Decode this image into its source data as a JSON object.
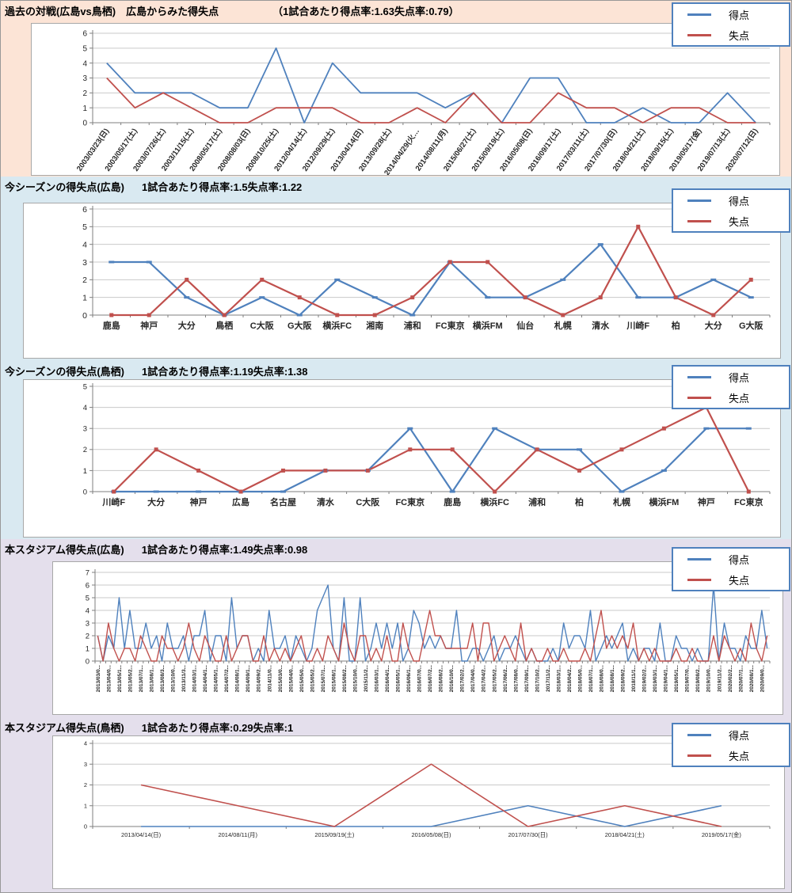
{
  "legend": {
    "score_label": "得点",
    "concede_label": "失点"
  },
  "colors": {
    "score": "#4F81BD",
    "concede": "#C0504D",
    "section1_bg": "#FCE4D6",
    "section2_bg": "#D9E9F1",
    "section3_bg": "#D9E9F1",
    "section4_bg": "#E4DFEC",
    "section5_bg": "#E4DFEC",
    "legend_border": "#4F81BD"
  },
  "sections": [
    {
      "title": "過去の対戦(広島vs鳥栖)　広島からみた得失点",
      "stats": "（1試合あたり得点率:1.63失点率:0.79）"
    },
    {
      "title": "今シーズンの得失点(広島)",
      "stats": "1試合あたり得点率:1.5失点率:1.22"
    },
    {
      "title": "今シーズンの得失点(鳥栖)",
      "stats": "1試合あたり得点率:1.19失点率:1.38"
    },
    {
      "title": "本スタジアム得失点(広島)",
      "stats": "1試合あたり得点率:1.49失点率:0.98"
    },
    {
      "title": "本スタジアム得失点(鳥栖)",
      "stats": "1試合あたり得点率:0.29失点率:1"
    }
  ],
  "chart_data": [
    {
      "type": "line",
      "title": "過去の対戦(広島vs鳥栖) 広島からみた得失点",
      "x_labels": [
        "2003/03/23(日)",
        "2003/05/17(土)",
        "2003/07/26(土)",
        "2003/11/15(土)",
        "2008/05/17(土)",
        "2008/08/03(日)",
        "2008/10/25(土)",
        "2012/04/14(土)",
        "2012/09/29(土)",
        "2013/04/14(日)",
        "2013/09/28(土)",
        "2014/04/29(火…",
        "2014/08/11(月)",
        "2015/06/27(土)",
        "2015/09/19(土)",
        "2016/05/08(日)",
        "2016/09/17(土)",
        "2017/03/11(土)",
        "2017/07/30(日)",
        "2018/04/21(土)",
        "2018/09/15(土)",
        "2019/05/17(金)",
        "2019/07/13(土)",
        "2020/07/12(日)"
      ],
      "series": [
        {
          "name": "得点",
          "color": "#4F81BD",
          "values": [
            4,
            2,
            2,
            2,
            1,
            1,
            5,
            0,
            4,
            2,
            2,
            2,
            1,
            2,
            0,
            3,
            3,
            0,
            0,
            1,
            0,
            0,
            2,
            0
          ]
        },
        {
          "name": "失点",
          "color": "#C0504D",
          "values": [
            3,
            1,
            2,
            1,
            0,
            0,
            1,
            1,
            1,
            0,
            0,
            1,
            0,
            2,
            0,
            0,
            2,
            1,
            1,
            0,
            1,
            1,
            0,
            0
          ]
        }
      ],
      "ylim": [
        0,
        6
      ],
      "grid": true,
      "legend_position": "top-right",
      "x_label_rotation": -55
    },
    {
      "type": "line",
      "title": "今シーズンの得失点(広島)",
      "x_labels": [
        "鹿島",
        "神戸",
        "大分",
        "鳥栖",
        "C大阪",
        "G大阪",
        "横浜FC",
        "湘南",
        "浦和",
        "FC東京",
        "横浜FM",
        "仙台",
        "札幌",
        "清水",
        "川崎F",
        "柏",
        "大分",
        "G大阪"
      ],
      "series": [
        {
          "name": "得点",
          "color": "#4F81BD",
          "values": [
            3,
            3,
            1,
            0,
            1,
            0,
            2,
            1,
            0,
            3,
            1,
            1,
            2,
            4,
            1,
            1,
            2,
            1
          ]
        },
        {
          "name": "失点",
          "color": "#C0504D",
          "values": [
            0,
            0,
            2,
            0,
            2,
            1,
            0,
            0,
            1,
            3,
            3,
            1,
            0,
            1,
            5,
            1,
            0,
            2
          ]
        }
      ],
      "ylim": [
        0,
        6
      ],
      "grid": true,
      "legend_position": "top-right",
      "x_label_rotation": 0
    },
    {
      "type": "line",
      "title": "今シーズンの得失点(鳥栖)",
      "x_labels": [
        "川崎F",
        "大分",
        "神戸",
        "広島",
        "名古屋",
        "清水",
        "C大阪",
        "FC東京",
        "鹿島",
        "横浜FC",
        "浦和",
        "柏",
        "札幌",
        "横浜FM",
        "神戸",
        "FC東京"
      ],
      "series": [
        {
          "name": "得点",
          "color": "#4F81BD",
          "values": [
            0,
            0,
            0,
            0,
            0,
            1,
            1,
            3,
            0,
            3,
            2,
            2,
            0,
            1,
            3,
            3
          ]
        },
        {
          "name": "失点",
          "color": "#C0504D",
          "values": [
            0,
            2,
            1,
            0,
            1,
            1,
            1,
            2,
            2,
            0,
            2,
            1,
            2,
            3,
            4,
            0
          ]
        }
      ],
      "ylim": [
        0,
        5
      ],
      "grid": true,
      "legend_position": "top-right",
      "x_label_rotation": 0
    },
    {
      "type": "line",
      "title": "本スタジアム得失点(広島)",
      "label_every": 2,
      "x_labels": [
        "2013/03/0...",
        "2013/04/0...",
        "2013/05/1...",
        "2013/05/2...",
        "2013/07/1...",
        "2013/08/1...",
        "2013/08/3...",
        "2013/10/0...",
        "2013/11/3...",
        "2014/03/1...",
        "2014/04/1...",
        "2014/05/1...",
        "2014/07/2...",
        "2014/08/1...",
        "2014/09/1...",
        "2014/09/2...",
        "2014/11/0...",
        "2015/03/0...",
        "2015/04/0...",
        "2015/05/0...",
        "2015/05/2...",
        "2015/07/1...",
        "2015/08/1...",
        "2015/08/2...",
        "2015/10/0...",
        "2015/11/2...",
        "2016/03/1...",
        "2016/04/1...",
        "2016/05/1...",
        "2016/06/1...",
        "2016/07/0...",
        "2016/07/2...",
        "2016/08/2...",
        "2016/10/0...",
        "2017/02/2...",
        "2017/04/0...",
        "2017/04/2...",
        "2017/05/2...",
        "2017/06/2...",
        "2017/08/0...",
        "2017/09/1...",
        "2017/10/2...",
        "2017/11/2...",
        "2018/03/1...",
        "2018/04/2...",
        "2018/05/0...",
        "2018/07/1...",
        "2018/08/0...",
        "2018/08/1...",
        "2018/09/2...",
        "2018/11/1...",
        "2019/02/2...",
        "2019/03/1...",
        "2019/04/1...",
        "2019/05/1...",
        "2019/07/0...",
        "2019/08/2...",
        "2019/10/0...",
        "2019/11/2...",
        "2020/02/2...",
        "2020/07/1...",
        "2020/08/1...",
        "2020/09/0..."
      ],
      "series": [
        {
          "name": "得点",
          "color": "#4F81BD",
          "values": [
            2,
            0,
            2,
            1,
            5,
            1,
            4,
            1,
            1,
            3,
            1,
            2,
            0,
            3,
            1,
            1,
            2,
            0,
            2,
            2,
            4,
            0,
            2,
            2,
            0,
            5,
            1,
            2,
            2,
            0,
            1,
            0,
            4,
            1,
            1,
            2,
            0,
            2,
            1,
            0,
            1,
            4,
            5,
            6,
            1,
            0,
            5,
            0,
            0,
            5,
            0,
            1,
            3,
            1,
            3,
            1,
            3,
            0,
            1,
            4,
            3,
            1,
            2,
            1,
            2,
            1,
            1,
            4,
            0,
            0,
            1,
            1,
            0,
            1,
            2,
            0,
            1,
            1,
            2,
            1,
            0,
            1,
            0,
            0,
            0,
            1,
            0,
            3,
            1,
            2,
            2,
            1,
            4,
            0,
            1,
            2,
            1,
            2,
            3,
            0,
            1,
            0,
            1,
            1,
            0,
            3,
            0,
            0,
            2,
            1,
            1,
            0,
            1,
            0,
            0,
            6,
            0,
            3,
            1,
            1,
            0,
            2,
            1,
            1,
            4,
            1
          ]
        },
        {
          "name": "失点",
          "color": "#C0504D",
          "values": [
            2,
            0,
            3,
            1,
            0,
            1,
            1,
            0,
            2,
            1,
            0,
            0,
            2,
            1,
            1,
            0,
            1,
            3,
            1,
            0,
            2,
            1,
            0,
            0,
            2,
            0,
            1,
            2,
            2,
            0,
            0,
            2,
            0,
            1,
            0,
            1,
            0,
            1,
            2,
            0,
            0,
            1,
            0,
            2,
            1,
            0,
            3,
            1,
            0,
            2,
            2,
            0,
            1,
            0,
            2,
            0,
            0,
            3,
            1,
            0,
            0,
            2,
            4,
            2,
            2,
            1,
            1,
            1,
            1,
            1,
            3,
            0,
            3,
            3,
            0,
            1,
            2,
            1,
            0,
            3,
            0,
            1,
            0,
            0,
            1,
            0,
            0,
            1,
            0,
            0,
            0,
            1,
            0,
            2,
            4,
            1,
            2,
            1,
            2,
            1,
            3,
            0,
            1,
            0,
            1,
            0,
            0,
            0,
            1,
            0,
            0,
            1,
            0,
            0,
            0,
            2,
            0,
            2,
            1,
            0,
            1,
            0,
            3,
            1,
            0,
            2
          ]
        }
      ],
      "ylim": [
        0,
        7
      ],
      "grid": true,
      "legend_position": "top-right",
      "x_label_rotation": -90
    },
    {
      "type": "line",
      "title": "本スタジアム得失点(鳥栖)",
      "x_labels": [
        "2013/04/14(日)",
        "2014/08/11(月)",
        "2015/09/19(土)",
        "2016/05/08(日)",
        "2017/07/30(日)",
        "2018/04/21(土)",
        "2019/05/17(金)"
      ],
      "series": [
        {
          "name": "得点",
          "color": "#4F81BD",
          "values": [
            0,
            0,
            0,
            0,
            1,
            0,
            1
          ]
        },
        {
          "name": "失点",
          "color": "#C0504D",
          "values": [
            2,
            1,
            0,
            3,
            0,
            1,
            0
          ]
        }
      ],
      "ylim": [
        0,
        4
      ],
      "grid": true,
      "legend_position": "top-right",
      "x_label_rotation": 0
    }
  ]
}
